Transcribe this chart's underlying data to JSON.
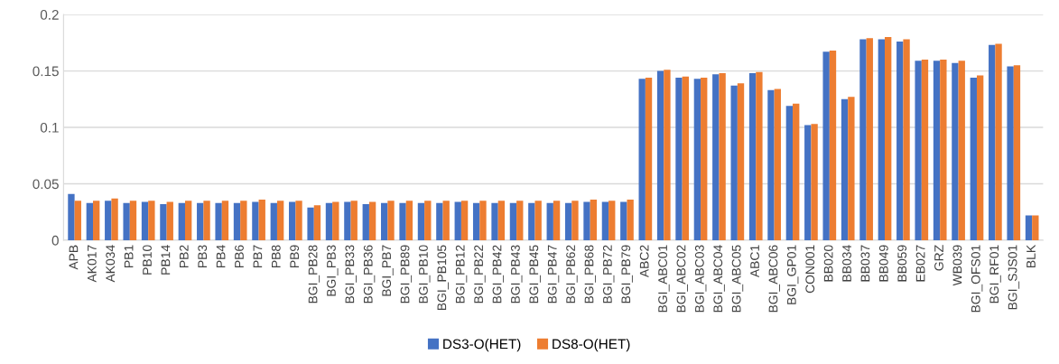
{
  "chart_data": {
    "type": "bar",
    "categories": [
      "APB",
      "AK017",
      "AK034",
      "PB1",
      "PB10",
      "PB14",
      "PB2",
      "PB3",
      "PB4",
      "PB6",
      "PB7",
      "PB8",
      "PB9",
      "BGI_PB28",
      "BGI_PB3",
      "BGI_PB33",
      "BGI_PB36",
      "BGI_PB7",
      "BGI_PB89",
      "BGI_PB10",
      "BGI_PB105",
      "BGI_PB12",
      "BGI_PB22",
      "BGI_PB42",
      "BGI_PB43",
      "BGI_PB45",
      "BGI_PB47",
      "BGI_PB62",
      "BGI_PB68",
      "BGI_PB72",
      "BGI_PB79",
      "ABC2",
      "BGI_ABC01",
      "BGI_ABC02",
      "BGI_ABC03",
      "BGI_ABC04",
      "BGI_ABC05",
      "ABC1",
      "BGI_ABC06",
      "BGI_GP01",
      "CON001",
      "BB020",
      "BB034",
      "BB037",
      "BB049",
      "BB059",
      "EB027",
      "GRZ",
      "WB039",
      "BGI_OFS01",
      "BGI_RF01",
      "BGI_SJS01",
      "BLK"
    ],
    "series": [
      {
        "name": "DS3-O(HET)",
        "color": "#4472c4",
        "values": [
          0.041,
          0.033,
          0.035,
          0.033,
          0.034,
          0.032,
          0.033,
          0.033,
          0.033,
          0.033,
          0.034,
          0.033,
          0.034,
          0.029,
          0.033,
          0.034,
          0.032,
          0.033,
          0.033,
          0.033,
          0.033,
          0.034,
          0.033,
          0.033,
          0.033,
          0.033,
          0.033,
          0.033,
          0.034,
          0.034,
          0.034,
          0.143,
          0.15,
          0.144,
          0.143,
          0.147,
          0.137,
          0.148,
          0.133,
          0.119,
          0.102,
          0.167,
          0.125,
          0.178,
          0.178,
          0.176,
          0.159,
          0.159,
          0.157,
          0.144,
          0.173,
          0.154,
          0.022
        ]
      },
      {
        "name": "DS8-O(HET)",
        "color": "#ed7d31",
        "values": [
          0.035,
          0.035,
          0.037,
          0.035,
          0.035,
          0.034,
          0.035,
          0.035,
          0.035,
          0.035,
          0.036,
          0.035,
          0.035,
          0.031,
          0.034,
          0.035,
          0.034,
          0.035,
          0.035,
          0.035,
          0.035,
          0.035,
          0.035,
          0.035,
          0.035,
          0.035,
          0.035,
          0.035,
          0.036,
          0.035,
          0.036,
          0.144,
          0.151,
          0.145,
          0.144,
          0.148,
          0.139,
          0.149,
          0.134,
          0.121,
          0.103,
          0.168,
          0.127,
          0.179,
          0.18,
          0.178,
          0.16,
          0.16,
          0.159,
          0.146,
          0.174,
          0.155,
          0.022
        ]
      }
    ],
    "ylim": [
      0,
      0.2
    ],
    "yticks": [
      0,
      0.05,
      0.1,
      0.15,
      0.2
    ],
    "grid": "y",
    "legend": "bottom"
  }
}
